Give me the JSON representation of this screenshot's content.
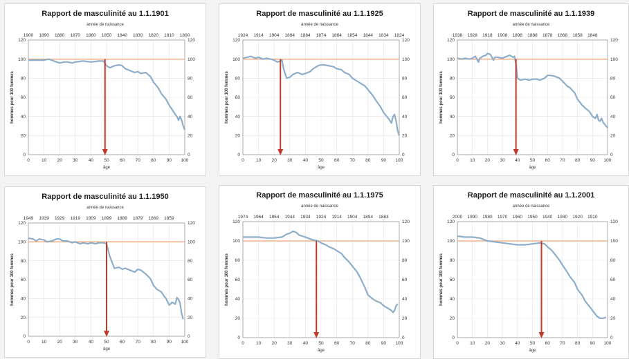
{
  "chart_data": [
    {
      "type": "line",
      "title": "Rapport de masculinité au 1.1.1901",
      "xlabel": "âge",
      "ylabel": "hommes pour 100 femmes",
      "x2label": "année de naissance",
      "xlim": [
        0,
        100
      ],
      "ylim": [
        0,
        120
      ],
      "x_ticks": [
        0,
        10,
        20,
        30,
        40,
        50,
        60,
        70,
        80,
        90,
        100
      ],
      "y_ticks": [
        0,
        20,
        40,
        60,
        80,
        100,
        120
      ],
      "top_ticks": [
        "1900",
        "1890",
        "1880",
        "1870",
        "1860",
        "1850",
        "1840",
        "1830",
        "1820",
        "1810",
        "1800"
      ],
      "reference_line": 100,
      "arrow_age": 49,
      "grid": true,
      "series": [
        {
          "x": [
            0,
            5,
            10,
            13,
            15,
            18,
            20,
            23,
            25,
            28,
            30,
            35,
            40,
            45,
            48,
            50,
            52,
            55,
            58,
            60,
            62,
            65,
            68,
            70,
            72,
            75,
            78,
            80,
            83,
            85,
            88,
            90,
            92,
            94,
            95,
            96,
            97,
            98,
            99,
            100
          ],
          "y": [
            99,
            99,
            99,
            100,
            99,
            97,
            96,
            97,
            97,
            96,
            97,
            98,
            97,
            98,
            98,
            93,
            91,
            93,
            94,
            93,
            90,
            88,
            86,
            87,
            85,
            86,
            82,
            76,
            70,
            64,
            58,
            52,
            47,
            42,
            40,
            36,
            40,
            36,
            30,
            26
          ]
        }
      ]
    },
    {
      "type": "line",
      "title": "Rapport de masculinité au 1.1.1925",
      "xlabel": "âge",
      "ylabel": "hommes pour 100 femmes",
      "x2label": "année de naissance",
      "xlim": [
        0,
        100
      ],
      "ylim": [
        0,
        120
      ],
      "x_ticks": [
        0,
        10,
        20,
        30,
        40,
        50,
        60,
        70,
        80,
        90,
        100
      ],
      "y_ticks": [
        0,
        20,
        40,
        60,
        80,
        100,
        120
      ],
      "top_ticks": [
        "1924",
        "1914",
        "1904",
        "1894",
        "1884",
        "1874",
        "1864",
        "1854",
        "1844",
        "1834",
        "1824"
      ],
      "reference_line": 100,
      "arrow_age": 24,
      "grid": true,
      "series": [
        {
          "x": [
            0,
            3,
            5,
            8,
            10,
            13,
            15,
            18,
            20,
            22,
            24,
            25,
            26,
            27,
            28,
            30,
            32,
            35,
            38,
            40,
            43,
            45,
            48,
            50,
            52,
            55,
            58,
            60,
            63,
            65,
            68,
            70,
            73,
            75,
            78,
            80,
            83,
            85,
            88,
            90,
            93,
            95,
            96,
            97,
            98,
            99,
            100
          ],
          "y": [
            101,
            102,
            103,
            101,
            102,
            100,
            101,
            100,
            99,
            97,
            98,
            99,
            90,
            85,
            80,
            81,
            84,
            86,
            84,
            85,
            87,
            90,
            93,
            94,
            94,
            93,
            92,
            90,
            89,
            86,
            84,
            80,
            77,
            75,
            72,
            68,
            62,
            57,
            50,
            44,
            38,
            33,
            40,
            42,
            35,
            25,
            20
          ]
        }
      ]
    },
    {
      "type": "line",
      "title": "Rapport de masculinité au 1.1.1939",
      "xlabel": "âge",
      "ylabel": "hommes pour 100 femmes",
      "x2label": "année de naissance",
      "xlim": [
        0,
        100
      ],
      "ylim": [
        0,
        120
      ],
      "x_ticks": [
        0,
        10,
        20,
        30,
        40,
        50,
        60,
        70,
        80,
        90,
        100
      ],
      "y_ticks": [
        0,
        20,
        40,
        60,
        80,
        100,
        120
      ],
      "top_ticks": [
        "1938",
        "1928",
        "1918",
        "1908",
        "1898",
        "1888",
        "1878",
        "1868",
        "1858",
        "1848"
      ],
      "reference_line": 100,
      "arrow_age": 39,
      "grid": true,
      "series": [
        {
          "x": [
            0,
            3,
            5,
            8,
            10,
            12,
            14,
            15,
            17,
            19,
            20,
            22,
            24,
            25,
            27,
            30,
            33,
            35,
            37,
            38,
            39,
            40,
            42,
            45,
            48,
            50,
            53,
            55,
            58,
            60,
            62,
            65,
            68,
            70,
            73,
            75,
            78,
            80,
            83,
            85,
            88,
            90,
            92,
            93,
            94,
            95,
            96,
            97,
            98,
            99,
            100
          ],
          "y": [
            101,
            100,
            101,
            100,
            101,
            103,
            97,
            101,
            103,
            104,
            106,
            105,
            99,
            102,
            102,
            101,
            103,
            104,
            102,
            103,
            95,
            80,
            78,
            79,
            78,
            79,
            79,
            78,
            80,
            83,
            83,
            82,
            80,
            77,
            72,
            70,
            65,
            58,
            52,
            49,
            45,
            40,
            38,
            42,
            36,
            35,
            38,
            34,
            32,
            30,
            28
          ]
        }
      ]
    },
    {
      "type": "line",
      "title": "Rapport de masculinité au 1.1.1950",
      "xlabel": "âge",
      "ylabel": "hommes pour 100 femmes",
      "x2label": "année de naissance",
      "xlim": [
        0,
        100
      ],
      "ylim": [
        0,
        120
      ],
      "x_ticks": [
        0,
        10,
        20,
        30,
        40,
        50,
        60,
        70,
        80,
        90,
        100
      ],
      "y_ticks": [
        0,
        20,
        40,
        60,
        80,
        100,
        120
      ],
      "top_ticks": [
        "1949",
        "1939",
        "1929",
        "1919",
        "1909",
        "1899",
        "1889",
        "1879",
        "1869",
        "1859"
      ],
      "reference_line": 100,
      "arrow_age": 50,
      "grid": true,
      "series": [
        {
          "x": [
            0,
            3,
            5,
            7,
            10,
            12,
            15,
            18,
            20,
            22,
            25,
            28,
            30,
            33,
            35,
            38,
            40,
            43,
            45,
            48,
            50,
            52,
            55,
            58,
            60,
            62,
            65,
            68,
            70,
            72,
            75,
            78,
            80,
            82,
            85,
            87,
            88,
            90,
            92,
            94,
            95,
            96,
            97,
            98,
            99
          ],
          "y": [
            104,
            103,
            101,
            103,
            102,
            100,
            101,
            103,
            103,
            101,
            101,
            99,
            100,
            98,
            99,
            98,
            99,
            98,
            99,
            99,
            98,
            85,
            72,
            73,
            71,
            72,
            70,
            68,
            71,
            70,
            66,
            61,
            54,
            50,
            47,
            42,
            40,
            33,
            36,
            34,
            41,
            39,
            35,
            24,
            18
          ]
        }
      ]
    },
    {
      "type": "line",
      "title": "Rapport de masculinité au 1.1.1975",
      "xlabel": "âge",
      "ylabel": "hommes pour 100 femmes",
      "x2label": "année de naissance",
      "xlim": [
        0,
        100
      ],
      "ylim": [
        0,
        120
      ],
      "x_ticks": [
        0,
        10,
        20,
        30,
        40,
        50,
        60,
        70,
        80,
        90,
        100
      ],
      "y_ticks": [
        0,
        20,
        40,
        60,
        80,
        100,
        120
      ],
      "top_ticks": [
        "1974",
        "1964",
        "1954",
        "1944",
        "1934",
        "1924",
        "1914",
        "1904",
        "1894",
        "1884"
      ],
      "reference_line": 100,
      "arrow_age": 47,
      "grid": true,
      "series": [
        {
          "x": [
            0,
            5,
            10,
            15,
            20,
            25,
            28,
            30,
            32,
            34,
            36,
            38,
            40,
            43,
            45,
            48,
            50,
            53,
            55,
            58,
            60,
            63,
            65,
            68,
            70,
            73,
            75,
            78,
            80,
            83,
            85,
            88,
            90,
            92,
            93,
            95,
            96,
            97,
            98,
            99
          ],
          "y": [
            104,
            104,
            104,
            103,
            103,
            104,
            107,
            108,
            110,
            109,
            106,
            105,
            104,
            102,
            101,
            100,
            98,
            96,
            94,
            92,
            90,
            87,
            83,
            78,
            74,
            68,
            62,
            52,
            44,
            40,
            38,
            36,
            33,
            31,
            30,
            28,
            26,
            28,
            33,
            35
          ]
        }
      ]
    },
    {
      "type": "line",
      "title": "Rapport de masculinité au 1.1.2001",
      "xlabel": "âge",
      "ylabel": "hommes pour 100 femmes",
      "x2label": "année de naissance",
      "xlim": [
        0,
        100
      ],
      "ylim": [
        0,
        120
      ],
      "x_ticks": [
        0,
        10,
        20,
        30,
        40,
        50,
        60,
        70,
        80,
        90,
        100
      ],
      "y_ticks": [
        0,
        20,
        40,
        60,
        80,
        100,
        120
      ],
      "top_ticks": [
        "2000",
        "1990",
        "1980",
        "1970",
        "1960",
        "1950",
        "1940",
        "1930",
        "1920",
        "1910"
      ],
      "reference_line": 100,
      "arrow_age": 56,
      "grid": true,
      "series": [
        {
          "x": [
            0,
            5,
            10,
            15,
            20,
            25,
            30,
            35,
            40,
            45,
            50,
            55,
            58,
            60,
            63,
            65,
            68,
            70,
            73,
            75,
            78,
            80,
            83,
            85,
            88,
            90,
            93,
            95,
            97,
            99
          ],
          "y": [
            105,
            104,
            104,
            103,
            100,
            99,
            98,
            97,
            96,
            96,
            97,
            98,
            97,
            94,
            90,
            86,
            80,
            75,
            68,
            63,
            57,
            50,
            44,
            38,
            32,
            28,
            22,
            20,
            20,
            21
          ]
        }
      ]
    }
  ]
}
